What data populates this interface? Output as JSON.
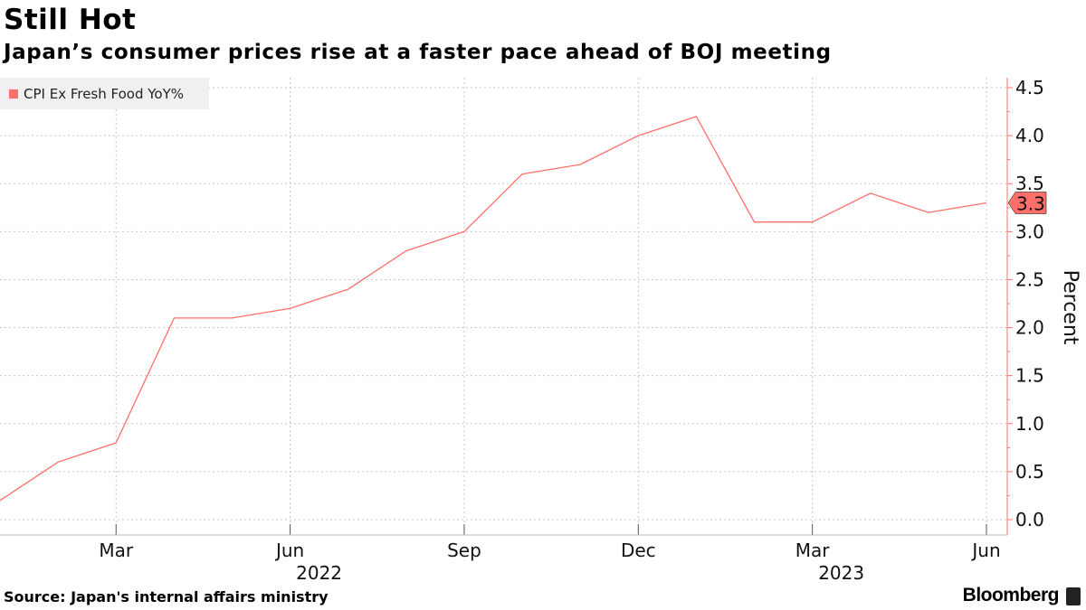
{
  "header": {
    "title": "Still Hot",
    "subtitle": "Japan’s consumer prices rise at a faster pace ahead of BOJ meeting"
  },
  "footer": {
    "source": "Source: Japan's internal affairs ministry",
    "brand": "Bloomberg"
  },
  "colors": {
    "series": "#ff6f69",
    "grid": "#c8c8c8",
    "legend_bg": "#f0f0f0"
  },
  "chart_data": {
    "type": "line",
    "title": "Still Hot",
    "subtitle": "Japan’s consumer prices rise at a faster pace ahead of BOJ meeting",
    "ylabel": "Percent",
    "ylim": [
      0,
      4.5
    ],
    "yticks": [
      "0.0",
      "0.5",
      "1.0",
      "1.5",
      "2.0",
      "2.5",
      "3.0",
      "3.5",
      "4.0",
      "4.5"
    ],
    "ytick_values": [
      0,
      0.5,
      1.0,
      1.5,
      2.0,
      2.5,
      3.0,
      3.5,
      4.0,
      4.5
    ],
    "x": [
      "2022-01",
      "2022-02",
      "2022-03",
      "2022-04",
      "2022-05",
      "2022-06",
      "2022-07",
      "2022-08",
      "2022-09",
      "2022-10",
      "2022-11",
      "2022-12",
      "2023-01",
      "2023-02",
      "2023-03",
      "2023-04",
      "2023-05",
      "2023-06"
    ],
    "xticks": [
      {
        "month": "2022-03",
        "label": "Mar",
        "year": ""
      },
      {
        "month": "2022-06",
        "label": "Jun",
        "year": "2022"
      },
      {
        "month": "2022-09",
        "label": "Sep",
        "year": ""
      },
      {
        "month": "2022-12",
        "label": "Dec",
        "year": ""
      },
      {
        "month": "2023-03",
        "label": "Mar",
        "year": "2023"
      },
      {
        "month": "2023-06",
        "label": "Jun",
        "year": ""
      }
    ],
    "series": [
      {
        "name": "CPI Ex Fresh Food YoY%",
        "values": [
          0.2,
          0.6,
          0.8,
          2.1,
          2.1,
          2.2,
          2.4,
          2.8,
          3.0,
          3.6,
          3.7,
          4.0,
          4.2,
          3.1,
          3.1,
          3.4,
          3.2,
          3.3
        ]
      }
    ],
    "last_value_label": "3.3",
    "grid": true,
    "legend_position": "top-left"
  }
}
